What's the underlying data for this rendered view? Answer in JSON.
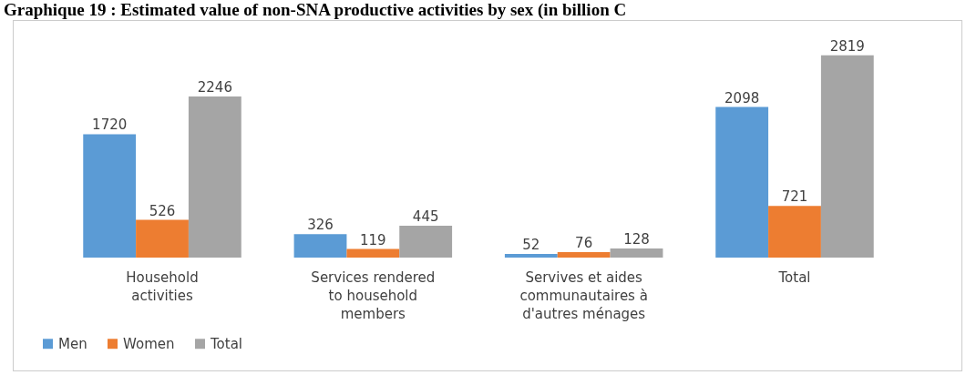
{
  "chart_data": {
    "type": "bar",
    "title": "Graphique 19 : Estimated value of non-SNA productive activities by sex (in billion C",
    "categories": [
      "Household activities",
      "Services rendered to household members",
      "Servives et aides communautaires à d'autres ménages",
      "Total"
    ],
    "series": [
      {
        "name": "Men",
        "color": "#5b9bd5",
        "values": [
          1720,
          326,
          52,
          2098
        ]
      },
      {
        "name": "Women",
        "color": "#ed7d31",
        "values": [
          526,
          119,
          76,
          721
        ]
      },
      {
        "name": "Total",
        "color": "#a5a5a5",
        "values": [
          2246,
          445,
          128,
          2819
        ]
      }
    ],
    "data_labels": true,
    "legend": "bottom"
  }
}
